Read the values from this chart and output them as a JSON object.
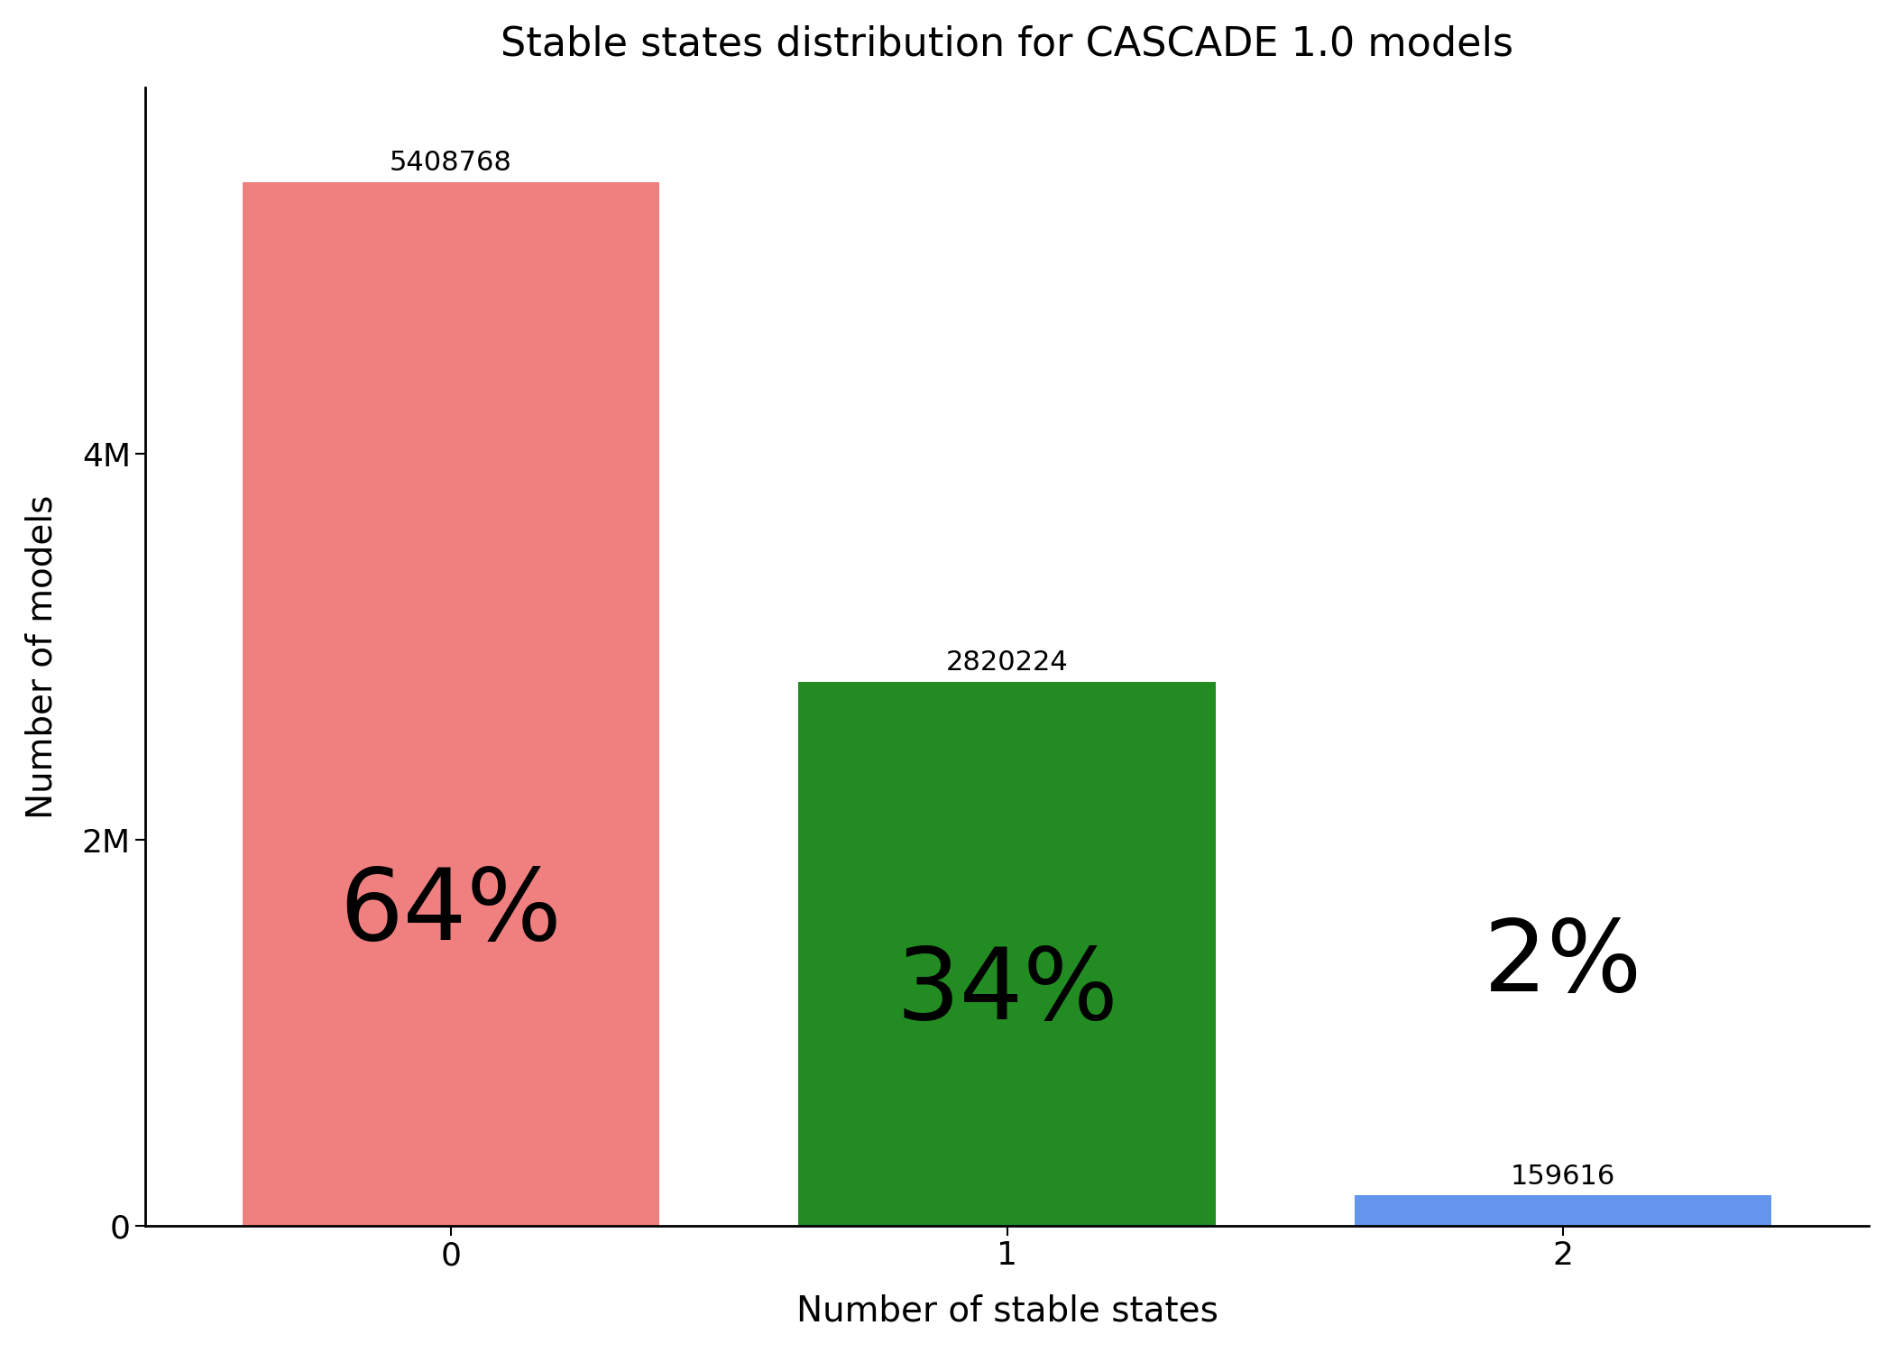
{
  "title": "Stable states distribution for CASCADE 1.0 models",
  "categories": [
    0,
    1,
    2
  ],
  "values": [
    5408768,
    2820224,
    159616
  ],
  "percentages": [
    "64%",
    "34%",
    "2%"
  ],
  "bar_colors": [
    "#F08080",
    "#228B22",
    "#6495ED"
  ],
  "xlabel": "Number of stable states",
  "ylabel": "Number of models",
  "ylim": [
    0,
    5900000
  ],
  "yticks": [
    0,
    2000000,
    4000000
  ],
  "ytick_labels": [
    "0",
    "2M",
    "4M"
  ],
  "title_fontsize": 32,
  "axis_label_fontsize": 28,
  "tick_fontsize": 26,
  "count_label_fontsize": 22,
  "pct_label_fontsize": 80,
  "background_color": "#ffffff",
  "bar_width": 0.75,
  "xlim": [
    -0.55,
    2.55
  ]
}
